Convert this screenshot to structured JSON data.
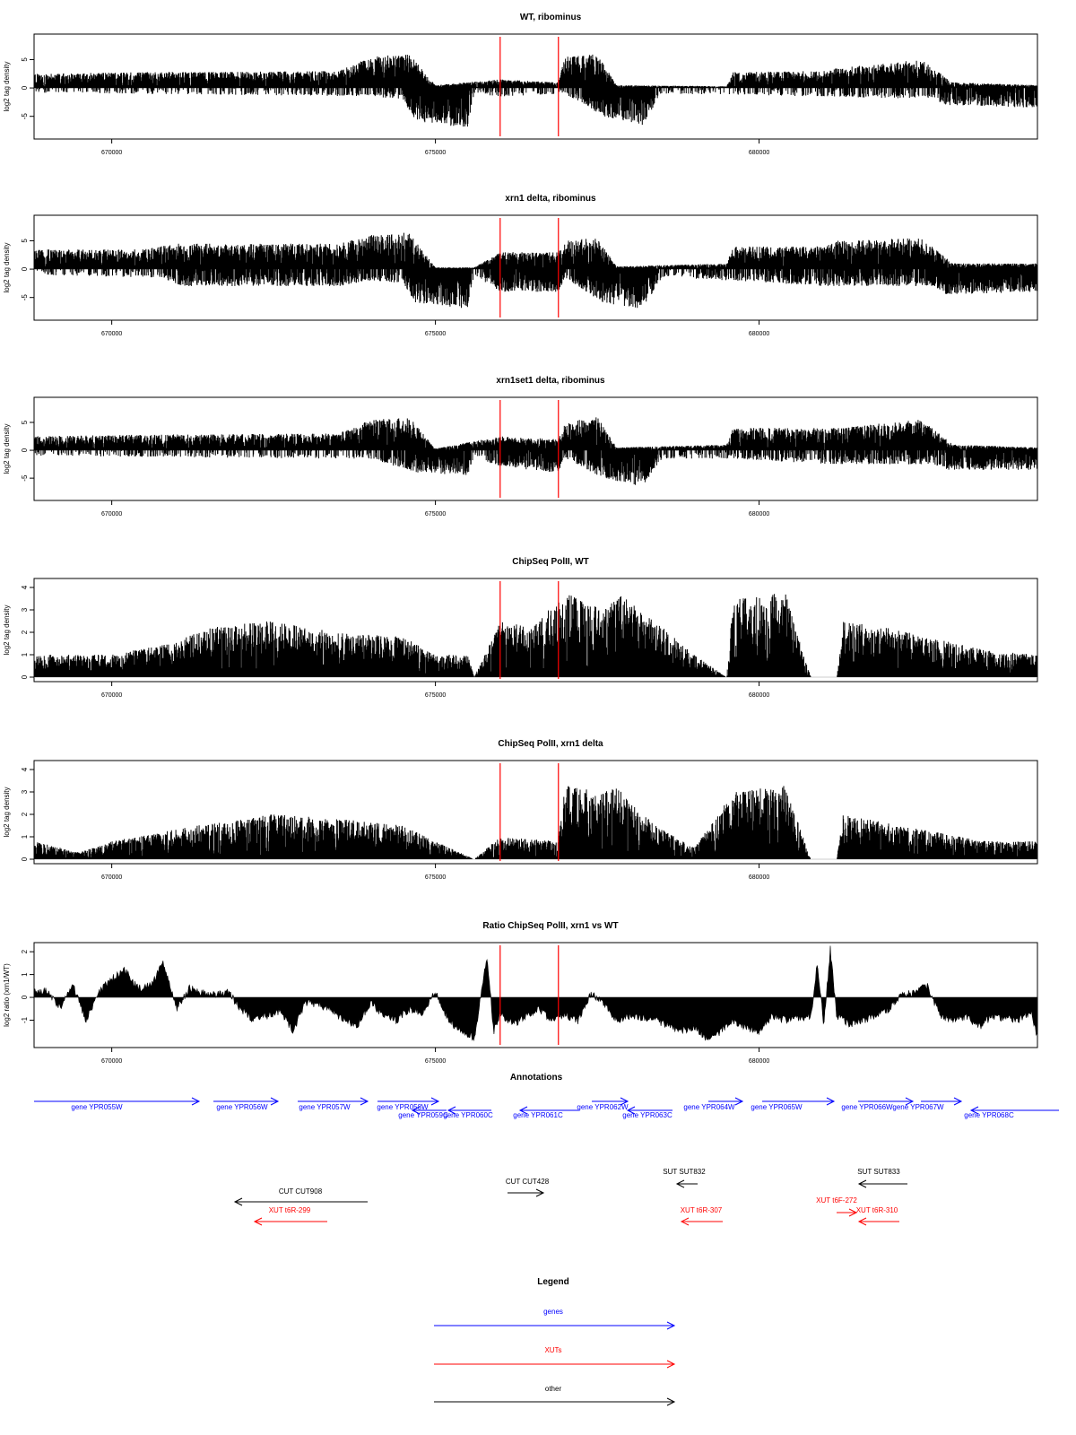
{
  "chart_data": [
    {
      "type": "bar",
      "title": "WT, ribominus",
      "ylabel": "log2 tag density",
      "xlim": [
        668800,
        684300
      ],
      "ylim": [
        -9,
        9.5
      ],
      "yticks": [
        5,
        0,
        -5
      ],
      "xticks": [
        670000,
        675000,
        680000
      ],
      "markers": [
        676000,
        676900
      ],
      "pos_profile": [
        [
          668800,
          2.5
        ],
        [
          670500,
          2.8
        ],
        [
          673500,
          3
        ],
        [
          674000,
          5.5
        ],
        [
          674600,
          6
        ],
        [
          675000,
          0.5
        ],
        [
          676000,
          1.5
        ],
        [
          676900,
          1
        ],
        [
          677000,
          5.5
        ],
        [
          677500,
          6
        ],
        [
          677800,
          0.5
        ],
        [
          679500,
          0.3
        ],
        [
          679600,
          2.8
        ],
        [
          681000,
          3
        ],
        [
          681200,
          3.5
        ],
        [
          682500,
          5
        ],
        [
          683000,
          1
        ],
        [
          684300,
          0.5
        ]
      ],
      "neg_profile": [
        [
          668800,
          -0.8
        ],
        [
          674000,
          -1.5
        ],
        [
          674500,
          -2
        ],
        [
          674700,
          -6
        ],
        [
          675500,
          -7
        ],
        [
          675600,
          -1
        ],
        [
          676000,
          -1.5
        ],
        [
          677000,
          -1
        ],
        [
          677600,
          -5
        ],
        [
          678200,
          -6.5
        ],
        [
          678500,
          -1
        ],
        [
          681000,
          -1.5
        ],
        [
          682700,
          -2
        ],
        [
          682900,
          -3
        ],
        [
          684300,
          -3.5
        ]
      ]
    },
    {
      "type": "bar",
      "title": "xrn1 delta, ribominus",
      "ylabel": "log2 tag density",
      "xlim": [
        668800,
        684300
      ],
      "ylim": [
        -9,
        9.5
      ],
      "yticks": [
        5,
        0,
        -5
      ],
      "xticks": [
        670000,
        675000,
        680000
      ],
      "markers": [
        676000,
        676900
      ],
      "pos_profile": [
        [
          668800,
          3.5
        ],
        [
          670500,
          3.5
        ],
        [
          671000,
          4.5
        ],
        [
          673500,
          4.5
        ],
        [
          674000,
          6
        ],
        [
          674600,
          6.5
        ],
        [
          675000,
          0.3
        ],
        [
          675600,
          0.3
        ],
        [
          676000,
          3
        ],
        [
          676900,
          3
        ],
        [
          677000,
          5
        ],
        [
          677500,
          5.5
        ],
        [
          677800,
          0.5
        ],
        [
          679500,
          1
        ],
        [
          679600,
          4
        ],
        [
          681000,
          4
        ],
        [
          681200,
          5
        ],
        [
          682500,
          5.5
        ],
        [
          683000,
          1
        ],
        [
          684300,
          1
        ]
      ],
      "neg_profile": [
        [
          668800,
          -1
        ],
        [
          670800,
          -1.5
        ],
        [
          671000,
          -3
        ],
        [
          673500,
          -3
        ],
        [
          674000,
          -2
        ],
        [
          674500,
          -2.5
        ],
        [
          674700,
          -6
        ],
        [
          675500,
          -7
        ],
        [
          675600,
          -1
        ],
        [
          676000,
          -4
        ],
        [
          676900,
          -4
        ],
        [
          677000,
          -1.5
        ],
        [
          677600,
          -6
        ],
        [
          678200,
          -7
        ],
        [
          678500,
          -1.5
        ],
        [
          679600,
          -2
        ],
        [
          681000,
          -3
        ],
        [
          682700,
          -3
        ],
        [
          682900,
          -4.5
        ],
        [
          684300,
          -4
        ]
      ]
    },
    {
      "type": "bar",
      "title": "xrn1set1 delta, ribominus",
      "ylabel": "log2 tag density",
      "xlim": [
        668800,
        684300
      ],
      "ylim": [
        -9,
        9.5
      ],
      "yticks": [
        5,
        0,
        -5
      ],
      "xticks": [
        670000,
        675000,
        680000
      ],
      "markers": [
        676000,
        676900
      ],
      "pos_profile": [
        [
          668800,
          2.5
        ],
        [
          670500,
          2.8
        ],
        [
          673500,
          3
        ],
        [
          674000,
          5.5
        ],
        [
          674600,
          6
        ],
        [
          675000,
          0.3
        ],
        [
          676000,
          2.5
        ],
        [
          676900,
          2
        ],
        [
          677000,
          5
        ],
        [
          677500,
          6
        ],
        [
          677800,
          0.5
        ],
        [
          679500,
          1
        ],
        [
          679600,
          4
        ],
        [
          681000,
          4
        ],
        [
          681200,
          4
        ],
        [
          682500,
          5.5
        ],
        [
          683000,
          1
        ],
        [
          684300,
          0.5
        ]
      ],
      "neg_profile": [
        [
          668800,
          -1
        ],
        [
          673500,
          -1.5
        ],
        [
          674000,
          -1.5
        ],
        [
          674700,
          -4
        ],
        [
          675500,
          -4.5
        ],
        [
          675600,
          -1
        ],
        [
          676000,
          -3
        ],
        [
          676900,
          -4
        ],
        [
          677000,
          -1.5
        ],
        [
          677600,
          -5
        ],
        [
          678200,
          -6.5
        ],
        [
          678500,
          -1.5
        ],
        [
          679600,
          -1.5
        ],
        [
          681000,
          -2.5
        ],
        [
          682700,
          -2.5
        ],
        [
          682900,
          -3.5
        ],
        [
          684300,
          -3.5
        ]
      ]
    },
    {
      "type": "bar",
      "title": "ChipSeq PolII, WT",
      "ylabel": "log2 tag density",
      "xlim": [
        668800,
        684300
      ],
      "ylim": [
        -0.2,
        4.4
      ],
      "yticks": [
        0,
        1,
        2,
        3,
        4
      ],
      "xticks": [
        670000,
        675000,
        680000
      ],
      "markers": [
        676000,
        676900
      ],
      "pos_profile": [
        [
          668800,
          1
        ],
        [
          670000,
          1
        ],
        [
          670900,
          1.5
        ],
        [
          671500,
          2.2
        ],
        [
          672400,
          2.5
        ],
        [
          673500,
          2
        ],
        [
          674500,
          1.8
        ],
        [
          675000,
          1
        ],
        [
          675500,
          1
        ],
        [
          675600,
          0
        ],
        [
          676000,
          2.5
        ],
        [
          676500,
          2.2
        ],
        [
          677000,
          3.8
        ],
        [
          677600,
          3
        ],
        [
          677800,
          3.8
        ],
        [
          678400,
          2.5
        ],
        [
          679000,
          1
        ],
        [
          679500,
          0
        ],
        [
          679600,
          3.5
        ],
        [
          680400,
          3.8
        ],
        [
          680800,
          0
        ],
        [
          681200,
          0
        ],
        [
          681300,
          2.5
        ],
        [
          682000,
          2.2
        ],
        [
          683500,
          1.2
        ],
        [
          684300,
          1
        ]
      ]
    },
    {
      "type": "bar",
      "title": "ChipSeq PolII, xrn1 delta",
      "ylabel": "log2 tag density",
      "xlim": [
        668800,
        684300
      ],
      "ylim": [
        -0.2,
        4.4
      ],
      "yticks": [
        0,
        1,
        2,
        3,
        4
      ],
      "xticks": [
        670000,
        675000,
        680000
      ],
      "markers": [
        676000,
        676900
      ],
      "pos_profile": [
        [
          668800,
          0.8
        ],
        [
          669500,
          0.3
        ],
        [
          670000,
          0.8
        ],
        [
          671500,
          1.6
        ],
        [
          672500,
          2
        ],
        [
          673500,
          1.8
        ],
        [
          674500,
          1.5
        ],
        [
          675000,
          0.8
        ],
        [
          675600,
          0
        ],
        [
          676000,
          1
        ],
        [
          676900,
          0.8
        ],
        [
          677000,
          3.3
        ],
        [
          677600,
          3
        ],
        [
          677800,
          3.2
        ],
        [
          678400,
          1.5
        ],
        [
          679000,
          0.5
        ],
        [
          679600,
          3
        ],
        [
          680400,
          3.3
        ],
        [
          680800,
          0
        ],
        [
          681200,
          0
        ],
        [
          681300,
          2
        ],
        [
          682000,
          1.6
        ],
        [
          683500,
          0.8
        ],
        [
          684300,
          0.8
        ]
      ]
    },
    {
      "type": "area",
      "title": "Ratio ChipSeq PolII, xrn1 vs WT",
      "ylabel": "log2 ratio (xrn1/WT)",
      "xlim": [
        668800,
        684300
      ],
      "ylim": [
        -2.2,
        2.4
      ],
      "yticks": [
        2,
        1,
        0,
        -1
      ],
      "xticks": [
        670000,
        675000,
        680000
      ],
      "markers": [
        676000,
        676900
      ],
      "x": [
        668800,
        669000,
        669200,
        669400,
        669600,
        669800,
        670000,
        670200,
        670400,
        670600,
        670800,
        671000,
        671200,
        671400,
        671600,
        671800,
        672000,
        672200,
        672400,
        672600,
        672800,
        673000,
        673200,
        673400,
        673600,
        673800,
        674000,
        674200,
        674400,
        674600,
        674800,
        675000,
        675200,
        675400,
        675600,
        675800,
        675900,
        676000,
        676200,
        676400,
        676600,
        676800,
        677000,
        677200,
        677400,
        677600,
        677800,
        678000,
        678200,
        678400,
        678600,
        678800,
        679000,
        679200,
        679400,
        679600,
        679800,
        680000,
        680200,
        680400,
        680600,
        680800,
        680900,
        681000,
        681100,
        681200,
        681400,
        681600,
        681800,
        682000,
        682200,
        682400,
        682600,
        682800,
        683000,
        683200,
        683400,
        683600,
        683800,
        684000,
        684200,
        684300
      ],
      "values": [
        0.2,
        0.3,
        -0.5,
        0.6,
        -1,
        0.2,
        0.8,
        1.2,
        0.4,
        0.5,
        1.5,
        -0.5,
        0.4,
        0.2,
        0.1,
        0.2,
        -0.5,
        -1,
        -0.8,
        -0.6,
        -1.5,
        -0.2,
        -0.3,
        -0.6,
        -1,
        -1.2,
        -0.2,
        -0.8,
        -1,
        -0.5,
        -0.7,
        0.3,
        -1,
        -1.5,
        -1.8,
        1.8,
        -1.5,
        -0.7,
        -1.2,
        -0.8,
        -0.5,
        -1,
        -0.7,
        -1.1,
        0.2,
        -0.3,
        -1,
        -0.8,
        -0.9,
        -1,
        -1.2,
        -1.5,
        -1.3,
        -1.8,
        -1.5,
        -1,
        -1.3,
        -1.5,
        -0.8,
        -1,
        -0.9,
        -0.8,
        1.5,
        -1.2,
        2.1,
        -0.8,
        -1.2,
        -1,
        -0.8,
        -0.5,
        0.1,
        0.2,
        0.5,
        -0.8,
        -1,
        -0.8,
        -1.3,
        -0.8,
        -0.9,
        -1,
        -0.6,
        -1.8
      ]
    }
  ],
  "annotations": {
    "title": "Annotations",
    "genes": [
      "gene YPR055W",
      "gene YPR056W",
      "gene YPR057W",
      "gene YPR058W",
      "gene YPR059C",
      "gene YPR060C",
      "gene YPR061C",
      "gene YPR062W",
      "gene YPR063C",
      "gene YPR064W",
      "gene YPR065W",
      "gene YPR066W",
      "gene YPR067W",
      "gene YPR068C"
    ],
    "other": [
      "CUT CUT908",
      "CUT CUT428",
      "SUT SUT832",
      "SUT SUT833"
    ],
    "xuts": [
      "XUT t6R-299",
      "XUT t6R-307",
      "XUT t6F-272",
      "XUT t6R-310"
    ]
  },
  "legend": {
    "title": "Legend",
    "genes": "genes",
    "xuts": "XUTs",
    "other": "other"
  },
  "colors": {
    "genes": "#0000ff",
    "xuts": "#ff0000",
    "other": "#000000",
    "markers": "#ff0000",
    "bars": "#000000"
  }
}
